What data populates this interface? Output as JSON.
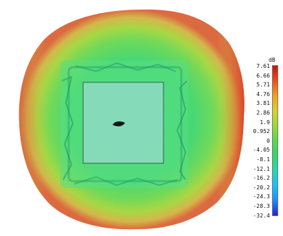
{
  "chart_data": {
    "type": "heatmap",
    "title": "",
    "legend": {
      "unit": "dB",
      "placement": "right",
      "ticks": [
        "7.61",
        "6.66",
        "5.71",
        "4.76",
        "3.81",
        "2.86",
        "1.9",
        "0.952",
        "0",
        "-4.05",
        "-8.1",
        "-12.1",
        "-16.2",
        "-20.2",
        "-24.3",
        "-28.3",
        "-32.4"
      ],
      "range": [
        -32.4,
        7.61
      ],
      "colorscale": [
        "#2020e0",
        "#1f8cff",
        "#18c0ff",
        "#2ad4b0",
        "#38d46a",
        "#5ad64a",
        "#9ad83a",
        "#d8d02c",
        "#f0a020",
        "#e85018",
        "#cc1010"
      ]
    },
    "pattern": {
      "description_values": {
        "outer_rim_db": 7.6,
        "ring_db": 4.0,
        "body_db": 0.5,
        "center_square_db": -1.0,
        "feature_min_db": -12.0
      }
    }
  }
}
